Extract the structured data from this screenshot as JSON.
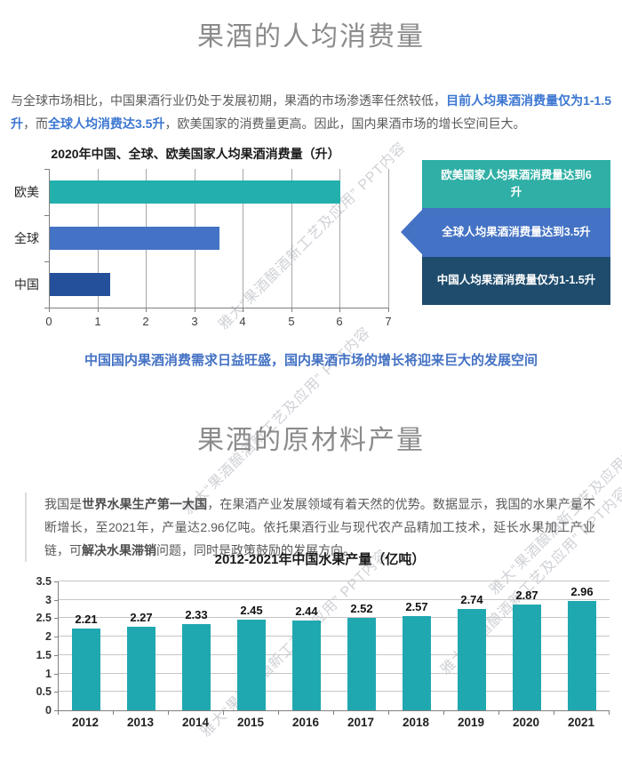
{
  "watermark": {
    "text": "雅大“果酒酿酒新工艺及应用” PPT内容"
  },
  "section1": {
    "title": "果酒的人均消费量",
    "paragraph_segments": [
      {
        "text": "与全球市场相比，中国果酒行业仍处于发展初期，果酒的市场渗透率任然较低，",
        "cls": ""
      },
      {
        "text": "目前人均果酒消费量仅为1-1.5升",
        "cls": "em-blue"
      },
      {
        "text": "，而",
        "cls": ""
      },
      {
        "text": "全球人均消费达3.5升",
        "cls": "em-blue"
      },
      {
        "text": "，欧美国家的消费量更高。因此，国内果酒市场的增长空间巨大。",
        "cls": ""
      }
    ],
    "callout_items": [
      {
        "text": "欧美国家人均果酒消费量达到6升",
        "color": "#2fafa5"
      },
      {
        "text": "全球人均果酒消费量达到3.5升",
        "color": "#4472c4"
      },
      {
        "text": "中国人均果酒消费量仅为1-1.5升",
        "color": "#1f4c6d"
      }
    ],
    "emphasis": "中国国内果酒消费需求日益旺盛，国内果酒市场的增长将迎来巨大的发展空间"
  },
  "section2": {
    "title": "果酒的原材料产量",
    "paragraph_segments": [
      {
        "text": "我国是",
        "cls": ""
      },
      {
        "text": "世界水果生产第一大国",
        "cls": "em-bold"
      },
      {
        "text": "，在果酒产业发展领域有着天然的优势。数据显示，我国的水果产量不断增长，至2021年，产量达2.96亿吨。依托果酒行业与现代农产品精加工技术，延长水果加工产业链，可",
        "cls": ""
      },
      {
        "text": "解决水果滞销",
        "cls": "em-bold"
      },
      {
        "text": "问题，同时是政策鼓励的发展方向。",
        "cls": ""
      }
    ]
  },
  "chart_data": [
    {
      "type": "bar",
      "orientation": "horizontal",
      "title": "2020年中国、全球、欧美国家人均果酒消费量（升）",
      "categories": [
        "欧美",
        "全球",
        "中国"
      ],
      "values": [
        6,
        3.5,
        1.25
      ],
      "bar_colors": [
        "#23b0ac",
        "#4472c4",
        "#24509b"
      ],
      "xlabel": "",
      "ylabel": "",
      "xlim": [
        0,
        7
      ],
      "xtick_step": 1,
      "grid": "vertical",
      "legend": "none"
    },
    {
      "type": "bar",
      "orientation": "vertical",
      "title": "2012-2021年中国水果产量（亿吨）",
      "categories": [
        "2012",
        "2013",
        "2014",
        "2015",
        "2016",
        "2017",
        "2018",
        "2019",
        "2020",
        "2021"
      ],
      "values": [
        2.21,
        2.27,
        2.33,
        2.45,
        2.44,
        2.52,
        2.57,
        2.74,
        2.87,
        2.96
      ],
      "bar_color": "#20a8b0",
      "xlabel": "",
      "ylabel": "",
      "ylim": [
        0,
        3.5
      ],
      "ytick_step": 0.5,
      "grid": "horizontal",
      "data_labels": true,
      "legend": "none"
    }
  ]
}
